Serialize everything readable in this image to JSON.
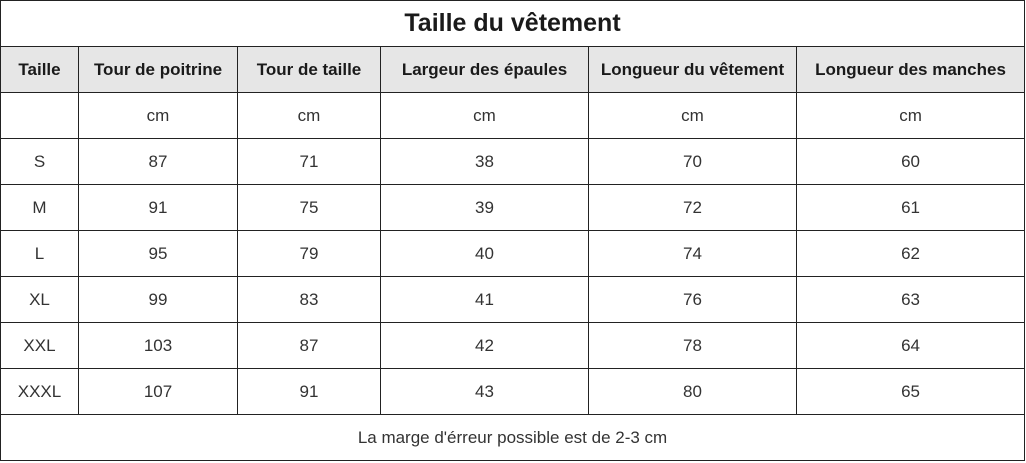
{
  "title": "Taille du vêtement",
  "columns": [
    "Taille",
    "Tour de poitrine",
    "Tour de taille",
    "Largeur des épaules",
    "Longueur du vêtement",
    "Longueur des manches"
  ],
  "units": [
    "",
    "cm",
    "cm",
    "cm",
    "cm",
    "cm"
  ],
  "rows": [
    [
      "S",
      "87",
      "71",
      "38",
      "70",
      "60"
    ],
    [
      "M",
      "91",
      "75",
      "39",
      "72",
      "61"
    ],
    [
      "L",
      "95",
      "79",
      "40",
      "74",
      "62"
    ],
    [
      "XL",
      "99",
      "83",
      "41",
      "76",
      "63"
    ],
    [
      "XXL",
      "103",
      "87",
      "42",
      "78",
      "64"
    ],
    [
      "XXXL",
      "107",
      "91",
      "43",
      "80",
      "65"
    ]
  ],
  "footer": "La marge d'érreur possible est de 2-3 cm",
  "colors": {
    "header_background": "#e6e6e6",
    "border": "#222222"
  }
}
